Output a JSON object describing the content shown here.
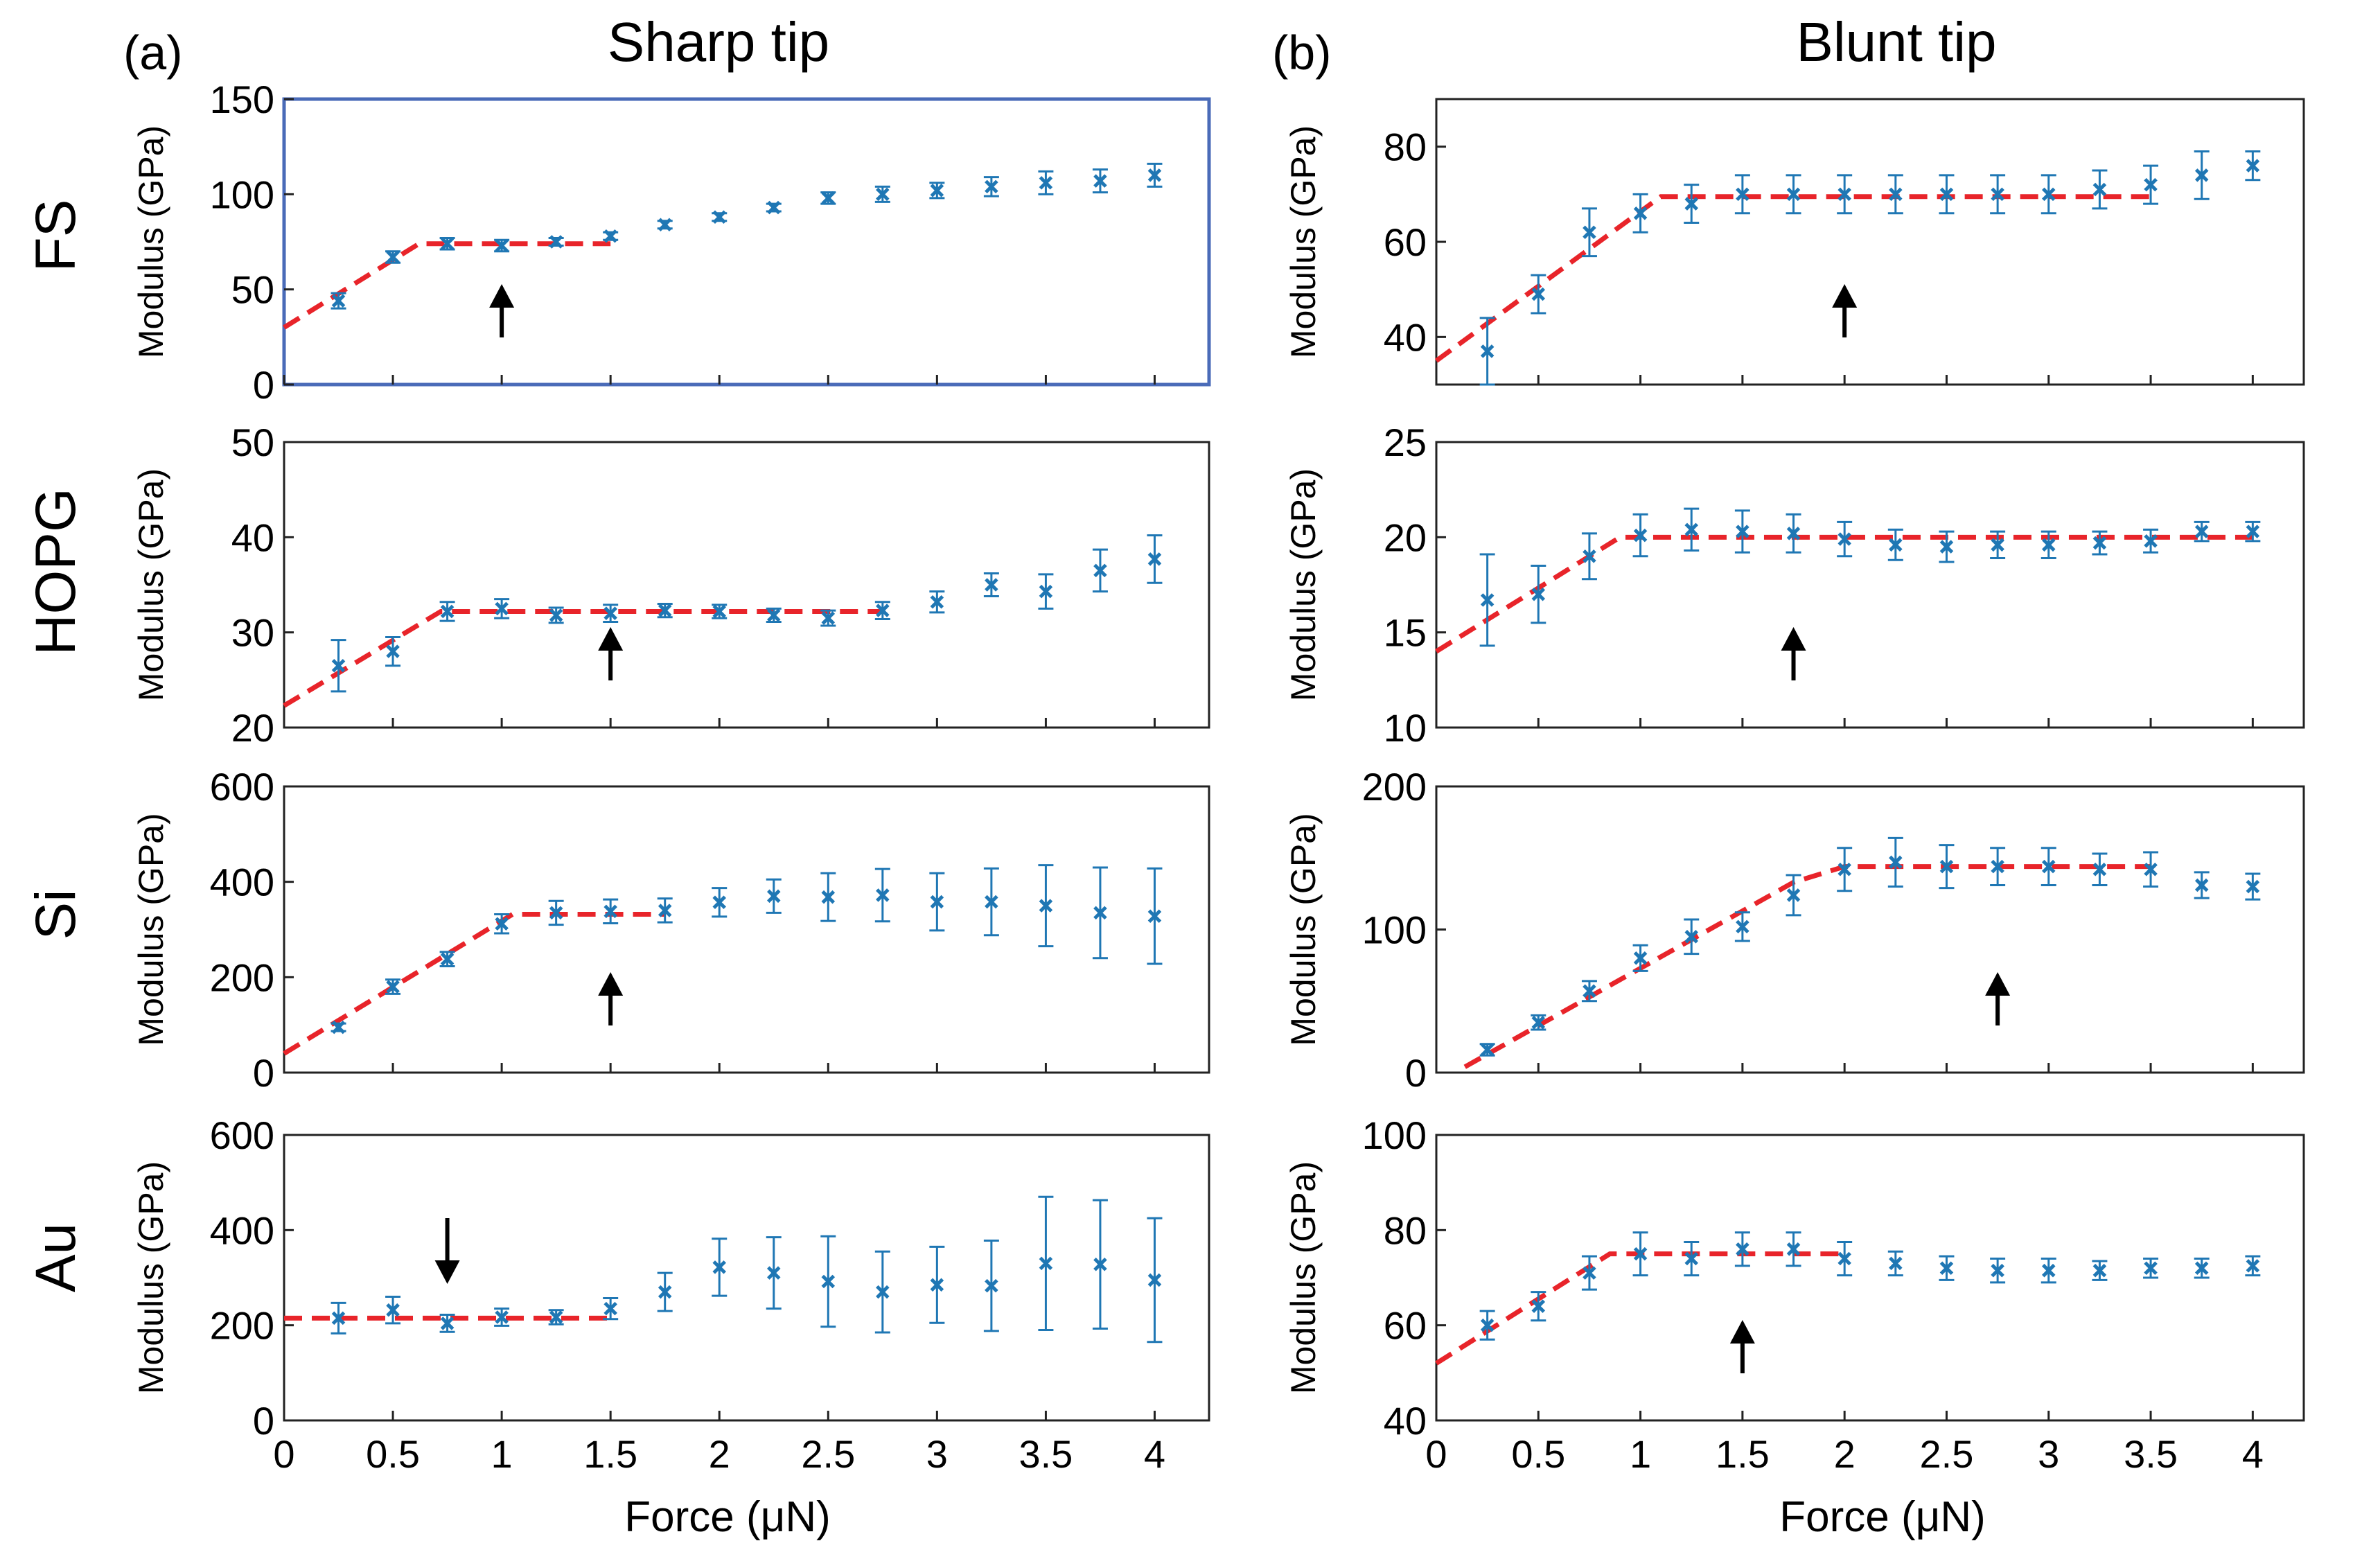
{
  "figure": {
    "panel_labels": [
      "(a)",
      "(b)"
    ],
    "column_titles": [
      "Sharp tip",
      "Blunt tip"
    ],
    "row_labels": [
      "FS",
      "HOPG",
      "Si",
      "Au"
    ],
    "ylabel": "Modulus (GPa)",
    "xlabel": "Force (μN)",
    "colors": {
      "marker": "#1f77b4",
      "fit": "#e8242a",
      "arrow": "#000000",
      "highlight_frame": "#4a6bb8"
    }
  },
  "chart_data": [
    {
      "id": "a-FS",
      "type": "scatter",
      "column": "Sharp tip",
      "row": "FS",
      "xlabel": "Force (μN)",
      "ylabel": "Modulus (GPa)",
      "xlim": [
        0,
        4.25
      ],
      "ylim": [
        0,
        150
      ],
      "yticks": [
        0,
        50,
        100,
        150
      ],
      "xticks": [],
      "x": [
        0.25,
        0.5,
        0.75,
        1,
        1.25,
        1.5,
        1.75,
        2,
        2.25,
        2.5,
        2.75,
        3,
        3.25,
        3.5,
        3.75,
        4
      ],
      "y": [
        44,
        67,
        74,
        73,
        75,
        78,
        84,
        88,
        93,
        98,
        100,
        102,
        104,
        106,
        107,
        110
      ],
      "err": [
        4,
        3,
        3,
        3,
        2,
        2,
        2,
        2,
        2,
        3,
        4,
        4,
        5,
        6,
        6,
        6
      ],
      "fit_line": {
        "x": [
          0,
          0.62,
          1.5
        ],
        "y": [
          30,
          74,
          74
        ]
      },
      "arrow": {
        "x": 1.0,
        "direction": "up"
      },
      "highlighted": true
    },
    {
      "id": "b-FS",
      "type": "scatter",
      "column": "Blunt tip",
      "row": "FS",
      "xlabel": "Force (μN)",
      "ylabel": "Modulus (GPa)",
      "xlim": [
        0,
        4.25
      ],
      "ylim": [
        30,
        90
      ],
      "yticks": [
        40,
        60,
        80
      ],
      "xticks": [],
      "x": [
        0.25,
        0.5,
        0.75,
        1,
        1.25,
        1.5,
        1.75,
        2,
        2.25,
        2.5,
        2.75,
        3,
        3.25,
        3.5,
        3.75,
        4
      ],
      "y": [
        37,
        49,
        62,
        66,
        68,
        70,
        70,
        70,
        70,
        70,
        70,
        70,
        71,
        72,
        74,
        76
      ],
      "err": [
        7,
        4,
        5,
        4,
        4,
        4,
        4,
        4,
        4,
        4,
        4,
        4,
        4,
        4,
        5,
        3
      ],
      "fit_line": {
        "x": [
          0,
          1.1,
          3.5
        ],
        "y": [
          35,
          69.5,
          69.5
        ]
      },
      "arrow": {
        "x": 2.0,
        "direction": "up"
      },
      "highlighted": false
    },
    {
      "id": "a-HOPG",
      "type": "scatter",
      "column": "Sharp tip",
      "row": "HOPG",
      "xlabel": "Force (μN)",
      "ylabel": "Modulus (GPa)",
      "xlim": [
        0,
        4.25
      ],
      "ylim": [
        20,
        50
      ],
      "yticks": [
        20,
        30,
        40,
        50
      ],
      "xticks": [],
      "x": [
        0.25,
        0.5,
        0.75,
        1,
        1.25,
        1.5,
        1.75,
        2,
        2.25,
        2.5,
        2.75,
        3,
        3.25,
        3.5,
        3.75,
        4
      ],
      "y": [
        26.5,
        28,
        32.2,
        32.5,
        31.8,
        32,
        32.3,
        32.2,
        31.8,
        31.5,
        32.3,
        33.2,
        35,
        34.3,
        36.5,
        37.7
      ],
      "err": [
        2.7,
        1.5,
        1.0,
        1.0,
        0.8,
        0.9,
        0.7,
        0.7,
        0.7,
        0.8,
        0.9,
        1.1,
        1.2,
        1.8,
        2.2,
        2.5
      ],
      "fit_line": {
        "x": [
          0,
          0.72,
          2.75
        ],
        "y": [
          22.3,
          32.2,
          32.2
        ]
      },
      "arrow": {
        "x": 1.5,
        "direction": "up"
      },
      "highlighted": false
    },
    {
      "id": "b-HOPG",
      "type": "scatter",
      "column": "Blunt tip",
      "row": "HOPG",
      "xlabel": "Force (μN)",
      "ylabel": "Modulus (GPa)",
      "xlim": [
        0,
        4.25
      ],
      "ylim": [
        10,
        25
      ],
      "yticks": [
        10,
        15,
        20,
        25
      ],
      "xticks": [],
      "x": [
        0.25,
        0.5,
        0.75,
        1,
        1.25,
        1.5,
        1.75,
        2,
        2.25,
        2.5,
        2.75,
        3,
        3.25,
        3.5,
        3.75,
        4
      ],
      "y": [
        16.7,
        17,
        19,
        20.1,
        20.4,
        20.3,
        20.2,
        19.9,
        19.6,
        19.5,
        19.6,
        19.6,
        19.7,
        19.8,
        20.3,
        20.3
      ],
      "err": [
        2.4,
        1.5,
        1.2,
        1.1,
        1.1,
        1.1,
        1.0,
        0.9,
        0.8,
        0.8,
        0.7,
        0.7,
        0.6,
        0.6,
        0.5,
        0.5
      ],
      "fit_line": {
        "x": [
          0,
          0.9,
          4.0
        ],
        "y": [
          14,
          20,
          20
        ]
      },
      "arrow": {
        "x": 1.75,
        "direction": "up"
      },
      "highlighted": false
    },
    {
      "id": "a-Si",
      "type": "scatter",
      "column": "Sharp tip",
      "row": "Si",
      "xlabel": "Force (μN)",
      "ylabel": "Modulus (GPa)",
      "xlim": [
        0,
        4.25
      ],
      "ylim": [
        0,
        600
      ],
      "yticks": [
        0,
        200,
        400,
        600
      ],
      "xticks": [],
      "x": [
        0.25,
        0.5,
        0.75,
        1,
        1.25,
        1.5,
        1.75,
        2,
        2.25,
        2.5,
        2.75,
        3,
        3.25,
        3.5,
        3.75,
        4
      ],
      "y": [
        95,
        180,
        238,
        312,
        335,
        338,
        340,
        357,
        370,
        368,
        372,
        358,
        358,
        350,
        335,
        328
      ],
      "err": [
        8,
        15,
        15,
        20,
        25,
        25,
        25,
        30,
        35,
        50,
        55,
        60,
        70,
        85,
        95,
        100
      ],
      "fit_line": {
        "x": [
          0,
          1.05,
          1.75
        ],
        "y": [
          40,
          332,
          332
        ]
      },
      "arrow": {
        "x": 1.5,
        "direction": "up"
      },
      "highlighted": false
    },
    {
      "id": "b-Si",
      "type": "scatter",
      "column": "Blunt tip",
      "row": "Si",
      "xlabel": "Force (μN)",
      "ylabel": "Modulus (GPa)",
      "xlim": [
        0,
        4.25
      ],
      "ylim": [
        0,
        200
      ],
      "yticks": [
        0,
        100,
        200
      ],
      "xticks": [],
      "x": [
        0.25,
        0.5,
        0.75,
        1,
        1.25,
        1.5,
        1.75,
        2,
        2.25,
        2.5,
        2.75,
        3,
        3.25,
        3.5,
        3.75,
        4
      ],
      "y": [
        16,
        35,
        57,
        80,
        95,
        102,
        124,
        142,
        147,
        144,
        144,
        144,
        142,
        142,
        131,
        130
      ],
      "err": [
        4,
        5,
        7,
        9,
        12,
        10,
        14,
        15,
        17,
        15,
        13,
        13,
        11,
        12,
        9,
        9
      ],
      "fit_line": {
        "x": [
          0.14,
          1.75,
          2.0,
          3.5
        ],
        "y": [
          4,
          133,
          144,
          144
        ]
      },
      "arrow": {
        "x": 2.75,
        "direction": "up"
      },
      "highlighted": false
    },
    {
      "id": "a-Au",
      "type": "scatter",
      "column": "Sharp tip",
      "row": "Au",
      "xlabel": "Force (μN)",
      "ylabel": "Modulus (GPa)",
      "xlim": [
        0,
        4.25
      ],
      "ylim": [
        0,
        600
      ],
      "yticks": [
        0,
        200,
        400,
        600
      ],
      "xticks": [
        0,
        0.5,
        1,
        1.5,
        2,
        2.5,
        3,
        3.5,
        4
      ],
      "xtick_labels": [
        "0",
        "0.5",
        "1",
        "1.5",
        "2",
        "2.5",
        "3",
        "3.5",
        "4"
      ],
      "x": [
        0.25,
        0.5,
        0.75,
        1,
        1.25,
        1.5,
        1.75,
        2,
        2.25,
        2.5,
        2.75,
        3,
        3.25,
        3.5,
        3.75,
        4
      ],
      "y": [
        215,
        232,
        204,
        217,
        217,
        235,
        270,
        322,
        310,
        292,
        270,
        285,
        283,
        330,
        328,
        295
      ],
      "err": [
        32,
        28,
        18,
        18,
        15,
        22,
        40,
        60,
        75,
        95,
        85,
        80,
        95,
        140,
        135,
        130
      ],
      "fit_line": {
        "x": [
          0,
          1.5
        ],
        "y": [
          215,
          215
        ]
      },
      "arrow": {
        "x": 0.75,
        "direction": "down"
      },
      "highlighted": false
    },
    {
      "id": "b-Au",
      "type": "scatter",
      "column": "Blunt tip",
      "row": "Au",
      "xlabel": "Force (μN)",
      "ylabel": "Modulus (GPa)",
      "xlim": [
        0,
        4.25
      ],
      "ylim": [
        40,
        100
      ],
      "yticks": [
        40,
        60,
        80,
        100
      ],
      "xticks": [
        0,
        0.5,
        1,
        1.5,
        2,
        2.5,
        3,
        3.5,
        4
      ],
      "xtick_labels": [
        "0",
        "0.5",
        "1",
        "1.5",
        "2",
        "2.5",
        "3",
        "3.5",
        "4"
      ],
      "x": [
        0.25,
        0.5,
        0.75,
        1,
        1.25,
        1.5,
        1.75,
        2,
        2.25,
        2.5,
        2.75,
        3,
        3.25,
        3.5,
        3.75,
        4
      ],
      "y": [
        60,
        64,
        71,
        75,
        74,
        76,
        76,
        74,
        73,
        72,
        71.5,
        71.5,
        71.5,
        72,
        72,
        72.5
      ],
      "err": [
        3,
        3,
        3.5,
        4.5,
        3.5,
        3.5,
        3.5,
        3.5,
        2.5,
        2.5,
        2.5,
        2.5,
        2,
        2,
        2,
        2
      ],
      "fit_line": {
        "x": [
          0,
          0.85,
          2.0
        ],
        "y": [
          52,
          75,
          75
        ]
      },
      "arrow": {
        "x": 1.5,
        "direction": "up"
      },
      "highlighted": false
    }
  ]
}
